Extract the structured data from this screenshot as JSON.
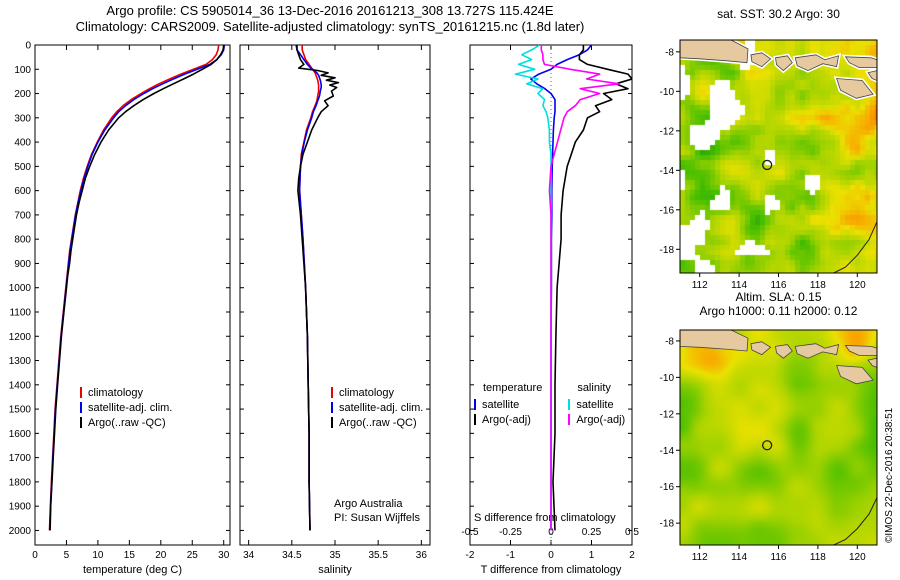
{
  "header": {
    "line1": "Argo profile: CS 5905014_36 13-Dec-2016 20161213_308 13.727S 115.424E",
    "line2": "Climatology: CARS2009. Satellite-adjusted climatology: synTS_20161215.nc (1.8d later)"
  },
  "annotations": {
    "argo_australia": "Argo Australia",
    "pi": "PI: Susan Wijffels"
  },
  "watermark": "©IMOS 22-Dec-2016 20:38:51",
  "map_geo": {
    "islands": [
      [
        [
          111,
          -7.4
        ],
        [
          113.6,
          -7.4
        ],
        [
          114.45,
          -7.85
        ],
        [
          114.4,
          -8.55
        ],
        [
          113.3,
          -8.45
        ],
        [
          112.0,
          -8.35
        ],
        [
          111,
          -8.3
        ]
      ],
      [
        [
          114.6,
          -8.15
        ],
        [
          115.15,
          -8.05
        ],
        [
          115.6,
          -8.35
        ],
        [
          115.15,
          -8.75
        ],
        [
          114.65,
          -8.5
        ]
      ],
      [
        [
          115.85,
          -8.3
        ],
        [
          116.45,
          -8.2
        ],
        [
          116.7,
          -8.55
        ],
        [
          116.25,
          -8.95
        ],
        [
          115.9,
          -8.65
        ]
      ],
      [
        [
          116.85,
          -8.3
        ],
        [
          117.9,
          -8.15
        ],
        [
          118.35,
          -8.4
        ],
        [
          119.05,
          -8.2
        ],
        [
          118.95,
          -8.75
        ],
        [
          118.25,
          -8.6
        ],
        [
          117.5,
          -8.95
        ],
        [
          116.95,
          -8.7
        ]
      ],
      [
        [
          119.4,
          -8.25
        ],
        [
          120.7,
          -8.3
        ],
        [
          121,
          -8.4
        ],
        [
          121,
          -8.8
        ],
        [
          120.1,
          -8.8
        ],
        [
          119.6,
          -8.55
        ]
      ],
      [
        [
          118.95,
          -9.35
        ],
        [
          120.25,
          -9.45
        ],
        [
          120.8,
          -10.15
        ],
        [
          119.95,
          -10.35
        ],
        [
          119.15,
          -9.95
        ]
      ],
      [
        [
          120.55,
          -9.05
        ],
        [
          121,
          -8.95
        ],
        [
          121,
          -9.45
        ],
        [
          120.75,
          -9.35
        ]
      ]
    ],
    "coastline": [
      [
        121,
        -16.6
      ],
      [
        120.6,
        -17.5
      ],
      [
        120.0,
        -18.3
      ],
      [
        119.4,
        -18.9
      ],
      [
        118.8,
        -19.2
      ]
    ]
  },
  "chart_data": [
    {
      "id": "temperature_profile",
      "type": "line",
      "xlabel": "temperature (deg C)",
      "xlim": [
        0,
        31
      ],
      "xticks": [
        0,
        5,
        10,
        15,
        20,
        25,
        30
      ],
      "ylim": [
        0,
        2060
      ],
      "yticks": [
        0,
        100,
        200,
        300,
        400,
        500,
        600,
        700,
        800,
        900,
        1000,
        1100,
        1200,
        1300,
        1400,
        1500,
        1600,
        1700,
        1800,
        1900,
        2000
      ],
      "y_meaning": "depth (m), increasing downward",
      "depths": [
        0,
        20,
        40,
        60,
        80,
        100,
        120,
        140,
        160,
        180,
        200,
        225,
        250,
        275,
        300,
        350,
        400,
        450,
        500,
        550,
        600,
        650,
        700,
        750,
        800,
        850,
        900,
        950,
        1000,
        1100,
        1200,
        1300,
        1400,
        1500,
        1600,
        1700,
        1800,
        1900,
        2000
      ],
      "series": [
        {
          "name": "climatology",
          "color": "#ee0000",
          "values": [
            29.2,
            29.1,
            28.8,
            28.2,
            27.2,
            25.2,
            23.2,
            21.4,
            19.7,
            18.2,
            16.9,
            15.3,
            14.0,
            13.0,
            12.2,
            10.9,
            9.9,
            9.0,
            8.3,
            7.7,
            7.2,
            6.8,
            6.4,
            6.1,
            5.8,
            5.5,
            5.3,
            5.1,
            4.9,
            4.5,
            4.1,
            3.8,
            3.5,
            3.2,
            3.0,
            2.8,
            2.6,
            2.45,
            2.3
          ]
        },
        {
          "name": "satellite-adj. clim.",
          "color": "#0000ee",
          "values": [
            30.1,
            30.0,
            29.6,
            28.9,
            27.8,
            25.8,
            23.8,
            22.0,
            20.3,
            18.7,
            17.3,
            15.7,
            14.4,
            13.3,
            12.5,
            11.1,
            10.0,
            9.1,
            8.4,
            7.8,
            7.3,
            6.85,
            6.45,
            6.15,
            5.85,
            5.55,
            5.35,
            5.15,
            4.95,
            4.55,
            4.15,
            3.85,
            3.55,
            3.25,
            3.05,
            2.85,
            2.65,
            2.48,
            2.33
          ]
        },
        {
          "name": "Argo(..raw -QC)",
          "color": "#000000",
          "values": [
            30.0,
            29.9,
            29.5,
            28.9,
            28.0,
            26.6,
            25.2,
            23.6,
            22.0,
            20.4,
            18.9,
            17.2,
            15.7,
            14.4,
            13.3,
            11.7,
            10.5,
            9.5,
            8.7,
            8.0,
            7.5,
            7.0,
            6.6,
            6.3,
            6.0,
            5.7,
            5.5,
            5.2,
            5.0,
            4.6,
            4.2,
            3.9,
            3.6,
            3.3,
            3.1,
            2.9,
            2.7,
            2.5,
            2.4
          ]
        }
      ]
    },
    {
      "id": "salinity_profile",
      "type": "line",
      "xlabel": "salinity",
      "xlim": [
        33.9,
        36.1
      ],
      "xticks": [
        34,
        34.5,
        35,
        35.5,
        36
      ],
      "ylim": [
        0,
        2060
      ],
      "depths": [
        0,
        20,
        40,
        60,
        80,
        95,
        105,
        115,
        125,
        135,
        145,
        155,
        165,
        175,
        190,
        210,
        230,
        250,
        275,
        300,
        350,
        400,
        450,
        500,
        550,
        600,
        700,
        800,
        900,
        1000,
        1200,
        1400,
        1600,
        1800,
        2000
      ],
      "series": [
        {
          "name": "climatology",
          "color": "#ee0000",
          "values": [
            34.62,
            34.62,
            34.64,
            34.66,
            34.7,
            34.73,
            34.75,
            34.77,
            34.78,
            34.79,
            34.8,
            34.805,
            34.81,
            34.81,
            34.81,
            34.8,
            34.79,
            34.77,
            34.74,
            34.72,
            34.67,
            34.64,
            34.61,
            34.6,
            34.595,
            34.59,
            34.61,
            34.63,
            34.645,
            34.66,
            34.68,
            34.69,
            34.7,
            34.7,
            34.71
          ]
        },
        {
          "name": "satellite-adj. clim.",
          "color": "#0000ee",
          "values": [
            34.55,
            34.56,
            34.6,
            34.64,
            34.68,
            34.72,
            34.76,
            34.79,
            34.81,
            34.82,
            34.83,
            34.835,
            34.84,
            34.84,
            34.83,
            34.82,
            34.8,
            34.78,
            34.75,
            34.73,
            34.68,
            34.645,
            34.615,
            34.6,
            34.595,
            34.59,
            34.61,
            34.63,
            34.645,
            34.66,
            34.68,
            34.69,
            34.7,
            34.7,
            34.71
          ]
        },
        {
          "name": "Argo(..raw -QC)",
          "color": "#000000",
          "values": [
            34.56,
            34.56,
            34.58,
            34.6,
            34.64,
            34.58,
            34.8,
            34.92,
            34.84,
            35.0,
            34.9,
            35.04,
            34.94,
            35.02,
            34.96,
            34.98,
            34.88,
            34.92,
            34.84,
            34.8,
            34.73,
            34.68,
            34.63,
            34.6,
            34.58,
            34.57,
            34.6,
            34.62,
            34.64,
            34.66,
            34.68,
            34.69,
            34.7,
            34.7,
            34.71
          ]
        }
      ]
    },
    {
      "id": "difference_profile",
      "type": "line",
      "xlabel": "T difference from climatology",
      "xlabel2": "S difference from climatology",
      "xlim": [
        -2,
        2
      ],
      "xticks": [
        -2,
        -1,
        0,
        1,
        2
      ],
      "xticks_s": [
        -0.5,
        -0.25,
        0,
        0.25,
        0.5
      ],
      "s_to_t_scale": 4,
      "zero_line": true,
      "ylim": [
        0,
        2060
      ],
      "legend_groups": [
        "temperature",
        "salinity"
      ],
      "depths": [
        0,
        20,
        40,
        60,
        80,
        100,
        120,
        140,
        160,
        180,
        200,
        225,
        250,
        275,
        300,
        350,
        400,
        450,
        500,
        600,
        700,
        800,
        900,
        1000,
        1200,
        1400,
        1600,
        1800,
        2000
      ],
      "series": [
        {
          "group": "temperature",
          "name": "satellite",
          "axis": "T",
          "color": "#0000ee",
          "values": [
            1.0,
            0.9,
            0.7,
            0.4,
            0.15,
            0.0,
            -0.3,
            -0.5,
            -0.35,
            -0.15,
            0.0,
            0.1,
            0.1,
            0.1,
            0.08,
            0.06,
            0.05,
            0.04,
            0.03,
            0.02,
            0.02,
            0.01,
            0.01,
            0.01,
            0.0,
            0.0,
            0.0,
            0.0,
            0.0
          ]
        },
        {
          "group": "temperature",
          "name": "Argo(-adj)",
          "axis": "T",
          "color": "#000000",
          "values": [
            0.8,
            0.8,
            0.7,
            0.7,
            0.9,
            1.4,
            1.9,
            2.0,
            1.6,
            1.9,
            1.3,
            1.5,
            1.1,
            1.2,
            0.9,
            0.8,
            0.6,
            0.5,
            0.4,
            0.3,
            0.25,
            0.25,
            0.2,
            0.15,
            0.12,
            0.1,
            0.1,
            0.05,
            0.1
          ]
        },
        {
          "group": "salinity",
          "name": "satellite",
          "axis": "S",
          "color": "#00dede",
          "values": [
            -0.07,
            -0.12,
            -0.18,
            -0.12,
            -0.2,
            -0.1,
            -0.22,
            -0.08,
            -0.15,
            -0.05,
            -0.08,
            -0.04,
            -0.05,
            -0.03,
            -0.02,
            -0.01,
            -0.01,
            0.0,
            0.0,
            0.0,
            0.0,
            0.0,
            0.0,
            0.0,
            0.0,
            0.0,
            0.0,
            0.0,
            0.0
          ]
        },
        {
          "group": "salinity",
          "name": "Argo(-adj)",
          "axis": "S",
          "color": "#ff00ff",
          "values": [
            -0.06,
            -0.06,
            -0.05,
            -0.05,
            -0.04,
            0.12,
            0.3,
            0.22,
            0.42,
            0.18,
            0.3,
            0.18,
            0.15,
            0.1,
            0.08,
            0.06,
            0.04,
            0.02,
            0.0,
            -0.01,
            0.0,
            0.0,
            0.0,
            0.0,
            0.0,
            0.0,
            0.0,
            0.0,
            0.0
          ]
        }
      ]
    },
    {
      "id": "sst_map",
      "type": "heatmap",
      "title": "sat. SST: 30.2 Argo: 30",
      "style": "pixelated satellite SST field with white cloud/no-data gaps",
      "lon_range": [
        111,
        121
      ],
      "lat_range": [
        -19.2,
        -7.4
      ],
      "lon_ticks": [
        112,
        114,
        116,
        118,
        120
      ],
      "lat_ticks": [
        -8,
        -10,
        -12,
        -14,
        -16,
        -18
      ],
      "marker": {
        "lon": 115.424,
        "lat": -13.727
      },
      "land_color": "#e7c9a0",
      "palette_stops": [
        [
          0,
          "#008200"
        ],
        [
          0.25,
          "#46be00"
        ],
        [
          0.45,
          "#aad400"
        ],
        [
          0.62,
          "#ebe100"
        ],
        [
          0.78,
          "#faa000"
        ],
        [
          0.9,
          "#eb5a00"
        ],
        [
          1,
          "#d21e00"
        ]
      ],
      "seed": 7
    },
    {
      "id": "sla_map",
      "type": "heatmap",
      "title1": "Altim. SLA: 0.15",
      "title2": "Argo h1000: 0.11 h2000: 0.12",
      "style": "smooth sea-level anomaly field",
      "lon_range": [
        111,
        121
      ],
      "lat_range": [
        -19.2,
        -7.4
      ],
      "lon_ticks": [
        112,
        114,
        116,
        118,
        120
      ],
      "lat_ticks": [
        -8,
        -10,
        -12,
        -14,
        -16,
        -18
      ],
      "marker": {
        "lon": 115.424,
        "lat": -13.727
      },
      "land_color": "#e7c9a0",
      "palette_stops": [
        [
          0,
          "#008200"
        ],
        [
          0.25,
          "#46be00"
        ],
        [
          0.45,
          "#aad400"
        ],
        [
          0.62,
          "#ebe100"
        ],
        [
          0.78,
          "#faa000"
        ],
        [
          0.9,
          "#eb5a00"
        ],
        [
          1,
          "#d21e00"
        ]
      ],
      "seed": 23
    }
  ]
}
